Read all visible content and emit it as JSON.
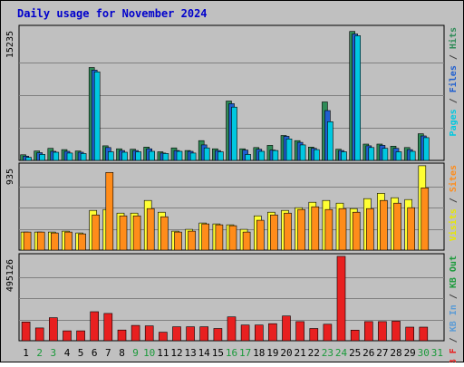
{
  "chart_data": {
    "type": "bar",
    "title": "Daily usage for November 2024",
    "days": [
      "1",
      "2",
      "3",
      "4",
      "5",
      "6",
      "7",
      "8",
      "9",
      "10",
      "11",
      "12",
      "13",
      "14",
      "15",
      "16",
      "17",
      "18",
      "19",
      "20",
      "21",
      "22",
      "23",
      "24",
      "25",
      "26",
      "27",
      "28",
      "29",
      "30",
      "31"
    ],
    "weekend_days": [
      "2",
      "3",
      "9",
      "10",
      "16",
      "17",
      "23",
      "24",
      "30",
      "31"
    ],
    "panels": [
      {
        "id": "traffic",
        "max_label": "15235",
        "max": 15235,
        "legend": [
          {
            "text": "Pages",
            "color": "#00c8e0"
          },
          {
            "text": " / ",
            "color": "#404040"
          },
          {
            "text": "Files",
            "color": "#1f5fd0"
          },
          {
            "text": " / ",
            "color": "#404040"
          },
          {
            "text": "Hits",
            "color": "#2e8b57"
          }
        ],
        "series": [
          {
            "name": "Hits",
            "color": "#2e8b57",
            "values": [
              650,
              1100,
              1400,
              1250,
              1100,
              10800,
              1700,
              1350,
              1300,
              1550,
              1000,
              1450,
              1150,
              2300,
              1350,
              6900,
              1350,
              1500,
              1750,
              2900,
              2300,
              1550,
              6800,
              1300,
              15000,
              1900,
              1900,
              1650,
              1500,
              3100,
              0
            ]
          },
          {
            "name": "Files",
            "color": "#1f5fd0",
            "values": [
              500,
              900,
              1050,
              1050,
              950,
              10500,
              1500,
              1150,
              1150,
              1350,
              850,
              1150,
              1050,
              1800,
              1150,
              6600,
              1200,
              1300,
              1200,
              2800,
              2100,
              1400,
              5800,
              1150,
              14700,
              1700,
              1750,
              1400,
              1250,
              2850,
              0
            ]
          },
          {
            "name": "Pages",
            "color": "#00c8e0",
            "values": [
              350,
              700,
              950,
              850,
              800,
              10300,
              1000,
              950,
              1000,
              1050,
              800,
              1050,
              850,
              1450,
              1000,
              6200,
              700,
              1050,
              1150,
              2500,
              1800,
              1250,
              4500,
              1000,
              14500,
              1500,
              1400,
              1000,
              1050,
              2650,
              0
            ]
          }
        ]
      },
      {
        "id": "visits",
        "max_label": "935",
        "max": 935,
        "legend": [
          {
            "text": "Visits",
            "color": "#e8e800"
          },
          {
            "text": " / ",
            "color": "#404040"
          },
          {
            "text": "Sites",
            "color": "#ff8c1a"
          }
        ],
        "series": [
          {
            "name": "Visits",
            "color": "#ffff33",
            "values": [
              200,
              200,
              200,
              210,
              190,
              440,
              450,
              410,
              410,
              550,
              420,
              210,
              230,
              300,
              290,
              280,
              230,
              380,
              420,
              440,
              470,
              530,
              550,
              520,
              460,
              570,
              630,
              580,
              560,
              935,
              0
            ]
          },
          {
            "name": "Sites",
            "color": "#ff8c1a",
            "values": [
              200,
              200,
              190,
              200,
              180,
              390,
              860,
              380,
              380,
              460,
              370,
              200,
              210,
              290,
              280,
              270,
              200,
              330,
              390,
              410,
              450,
              480,
              450,
              460,
              420,
              460,
              550,
              520,
              470,
              690,
              0
            ]
          }
        ]
      },
      {
        "id": "kbytes",
        "max_label": "495126",
        "max": 495126,
        "legend": [
          {
            "text": "KB F",
            "color": "#e82020"
          },
          {
            "text": " / ",
            "color": "#404040"
          },
          {
            "text": "KB In",
            "color": "#5b9bd5"
          },
          {
            "text": " / ",
            "color": "#404040"
          },
          {
            "text": "KB Out",
            "color": "#1a9a3a"
          }
        ],
        "series": [
          {
            "name": "KB F",
            "color": "#e82020",
            "values": [
              110000,
              75000,
              135000,
              58000,
              58000,
              170000,
              160000,
              63000,
              90000,
              87000,
              50000,
              82000,
              82000,
              82000,
              72000,
              140000,
              92000,
              92000,
              100000,
              145000,
              112000,
              72000,
              97000,
              495000,
              62000,
              112000,
              112000,
              115000,
              80000,
              80000,
              0
            ]
          }
        ]
      }
    ]
  }
}
